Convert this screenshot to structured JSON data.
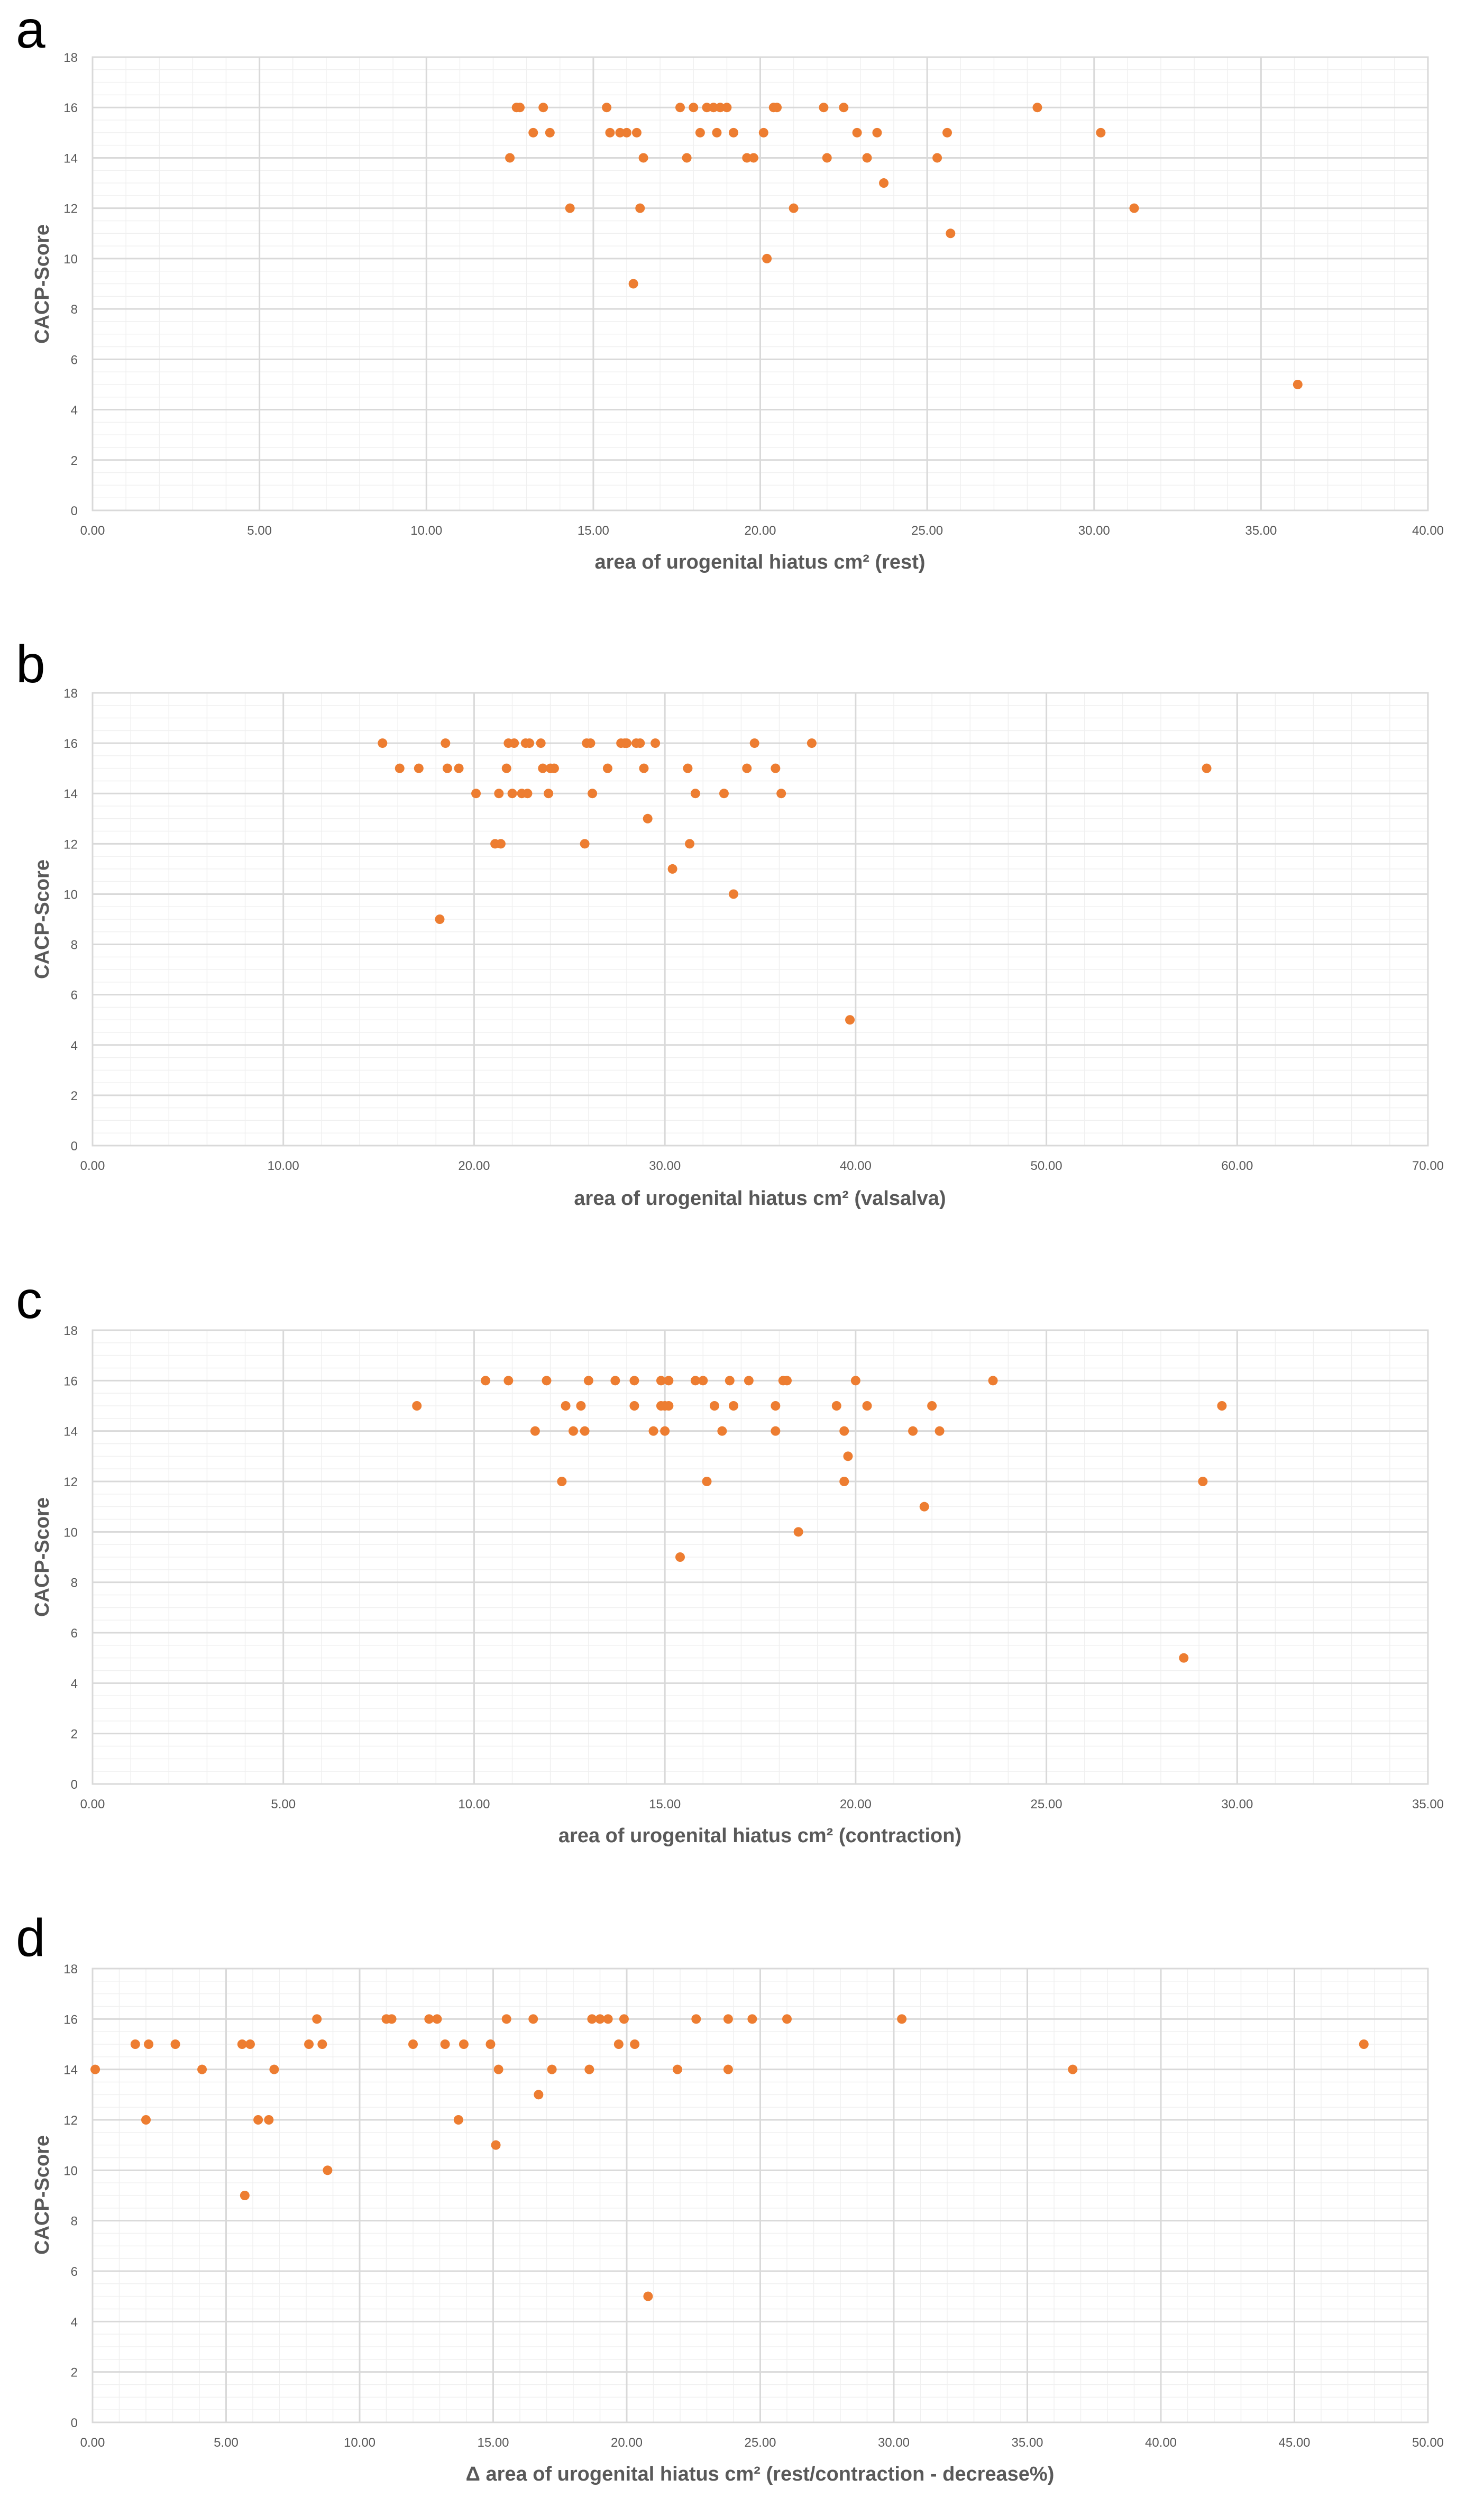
{
  "colors": {
    "marker": "#ED7D31",
    "major_grid": "#d9d9d9",
    "minor_grid": "#f0f0f0",
    "tick_text": "#595959",
    "frame": "#d9d9d9"
  },
  "chart_data": [
    {
      "panel": "a",
      "type": "scatter",
      "xlabel": "area of urogenital hiatus cm² (rest)",
      "ylabel": "CACP-Score",
      "xlim": [
        0,
        40
      ],
      "ylim": [
        0,
        18
      ],
      "x_ticks": [
        "0.00",
        "5.00",
        "10.00",
        "15.00",
        "20.00",
        "25.00",
        "30.00",
        "35.00",
        "40.00"
      ],
      "y_ticks": [
        "0",
        "2",
        "4",
        "6",
        "8",
        "10",
        "12",
        "14",
        "16",
        "18"
      ],
      "x_tick_step": 5,
      "y_tick_step": 2,
      "x_minor_step": 1,
      "y_minor_step": 0.5,
      "points": [
        [
          12.5,
          14
        ],
        [
          12.7,
          16
        ],
        [
          12.8,
          16
        ],
        [
          13.2,
          15
        ],
        [
          13.5,
          16
        ],
        [
          13.7,
          15
        ],
        [
          14.3,
          12
        ],
        [
          15.4,
          16
        ],
        [
          15.5,
          15
        ],
        [
          15.8,
          15
        ],
        [
          16.0,
          15
        ],
        [
          16.3,
          15
        ],
        [
          16.2,
          9
        ],
        [
          16.4,
          12
        ],
        [
          16.5,
          14
        ],
        [
          17.6,
          16
        ],
        [
          17.8,
          14
        ],
        [
          18.0,
          16
        ],
        [
          18.2,
          15
        ],
        [
          18.4,
          16
        ],
        [
          18.6,
          16
        ],
        [
          18.7,
          15
        ],
        [
          18.8,
          16
        ],
        [
          19.0,
          16
        ],
        [
          19.2,
          15
        ],
        [
          19.6,
          14
        ],
        [
          19.8,
          14
        ],
        [
          20.1,
          15
        ],
        [
          20.2,
          10
        ],
        [
          20.4,
          16
        ],
        [
          20.5,
          16
        ],
        [
          21.0,
          12
        ],
        [
          21.9,
          16
        ],
        [
          22.0,
          14
        ],
        [
          22.5,
          16
        ],
        [
          22.9,
          15
        ],
        [
          23.2,
          14
        ],
        [
          23.5,
          15
        ],
        [
          23.7,
          13
        ],
        [
          25.3,
          14
        ],
        [
          25.6,
          15
        ],
        [
          25.7,
          11
        ],
        [
          28.3,
          16
        ],
        [
          30.2,
          15
        ],
        [
          31.2,
          12
        ],
        [
          36.1,
          5
        ]
      ]
    },
    {
      "panel": "b",
      "type": "scatter",
      "xlabel": "area of urogenital hiatus cm² (valsalva)",
      "ylabel": "CACP-Score",
      "xlim": [
        0,
        70
      ],
      "ylim": [
        0,
        18
      ],
      "x_ticks": [
        "0.00",
        "10.00",
        "20.00",
        "30.00",
        "40.00",
        "50.00",
        "60.00",
        "70.00"
      ],
      "y_ticks": [
        "0",
        "2",
        "4",
        "6",
        "8",
        "10",
        "12",
        "14",
        "16",
        "18"
      ],
      "x_tick_step": 10,
      "y_tick_step": 2,
      "x_minor_step": 2,
      "y_minor_step": 0.5,
      "points": [
        [
          15.2,
          16
        ],
        [
          16.1,
          15
        ],
        [
          17.1,
          15
        ],
        [
          18.2,
          9
        ],
        [
          18.5,
          16
        ],
        [
          18.6,
          15
        ],
        [
          19.2,
          15
        ],
        [
          20.1,
          14
        ],
        [
          21.1,
          12
        ],
        [
          21.4,
          12
        ],
        [
          21.3,
          14
        ],
        [
          21.7,
          15
        ],
        [
          21.8,
          16
        ],
        [
          22.1,
          16
        ],
        [
          22.0,
          14
        ],
        [
          22.5,
          14
        ],
        [
          22.8,
          14
        ],
        [
          22.7,
          16
        ],
        [
          22.9,
          16
        ],
        [
          23.5,
          16
        ],
        [
          23.6,
          15
        ],
        [
          23.9,
          14
        ],
        [
          24.0,
          15
        ],
        [
          24.2,
          15
        ],
        [
          25.8,
          12
        ],
        [
          25.9,
          16
        ],
        [
          26.1,
          16
        ],
        [
          26.2,
          14
        ],
        [
          27.0,
          15
        ],
        [
          27.7,
          16
        ],
        [
          27.9,
          16
        ],
        [
          28.0,
          16
        ],
        [
          28.5,
          16
        ],
        [
          28.7,
          16
        ],
        [
          28.9,
          15
        ],
        [
          29.1,
          13
        ],
        [
          29.5,
          16
        ],
        [
          30.4,
          11
        ],
        [
          31.2,
          15
        ],
        [
          31.3,
          12
        ],
        [
          31.6,
          14
        ],
        [
          33.1,
          14
        ],
        [
          33.6,
          10
        ],
        [
          34.3,
          15
        ],
        [
          34.7,
          16
        ],
        [
          35.8,
          15
        ],
        [
          36.1,
          14
        ],
        [
          37.7,
          16
        ],
        [
          39.7,
          5
        ],
        [
          58.4,
          15
        ]
      ]
    },
    {
      "panel": "c",
      "type": "scatter",
      "xlabel": "area of urogenital hiatus cm² (contraction)",
      "ylabel": "CACP-Score",
      "xlim": [
        0,
        35
      ],
      "ylim": [
        0,
        18
      ],
      "x_ticks": [
        "0.00",
        "5.00",
        "10.00",
        "15.00",
        "20.00",
        "25.00",
        "30.00",
        "35.00"
      ],
      "y_ticks": [
        "0",
        "2",
        "4",
        "6",
        "8",
        "10",
        "12",
        "14",
        "16",
        "18"
      ],
      "x_tick_step": 5,
      "y_tick_step": 2,
      "x_minor_step": 1,
      "y_minor_step": 0.5,
      "points": [
        [
          8.5,
          15
        ],
        [
          10.3,
          16
        ],
        [
          10.9,
          16
        ],
        [
          11.6,
          14
        ],
        [
          11.9,
          16
        ],
        [
          12.3,
          12
        ],
        [
          12.4,
          15
        ],
        [
          12.6,
          14
        ],
        [
          12.8,
          15
        ],
        [
          12.9,
          14
        ],
        [
          13.0,
          16
        ],
        [
          13.7,
          16
        ],
        [
          14.2,
          16
        ],
        [
          14.2,
          15
        ],
        [
          14.7,
          14
        ],
        [
          14.9,
          16
        ],
        [
          14.9,
          15
        ],
        [
          15.0,
          15
        ],
        [
          15.0,
          14
        ],
        [
          15.1,
          16
        ],
        [
          15.1,
          15
        ],
        [
          15.4,
          9
        ],
        [
          15.8,
          16
        ],
        [
          16.0,
          16
        ],
        [
          16.1,
          12
        ],
        [
          16.3,
          15
        ],
        [
          16.5,
          14
        ],
        [
          16.7,
          16
        ],
        [
          16.8,
          15
        ],
        [
          17.2,
          16
        ],
        [
          17.9,
          15
        ],
        [
          17.9,
          14
        ],
        [
          18.1,
          16
        ],
        [
          18.2,
          16
        ],
        [
          18.5,
          10
        ],
        [
          19.5,
          15
        ],
        [
          19.7,
          12
        ],
        [
          19.7,
          14
        ],
        [
          19.8,
          13
        ],
        [
          20.0,
          16
        ],
        [
          20.3,
          15
        ],
        [
          21.5,
          14
        ],
        [
          21.8,
          11
        ],
        [
          22.0,
          15
        ],
        [
          22.2,
          14
        ],
        [
          23.6,
          16
        ],
        [
          28.6,
          5
        ],
        [
          29.1,
          12
        ],
        [
          29.6,
          15
        ]
      ]
    },
    {
      "panel": "d",
      "type": "scatter",
      "xlabel": "Δ area of urogenital hiatus cm² (rest/contraction - decrease%)",
      "ylabel": "CACP-Score",
      "xlim": [
        0,
        50
      ],
      "ylim": [
        0,
        18
      ],
      "x_ticks": [
        "0.00",
        "5.00",
        "10.00",
        "15.00",
        "20.00",
        "25.00",
        "30.00",
        "35.00",
        "40.00",
        "45.00",
        "50.00"
      ],
      "y_ticks": [
        "0",
        "2",
        "4",
        "6",
        "8",
        "10",
        "12",
        "14",
        "16",
        "18"
      ],
      "x_tick_step": 5,
      "y_tick_step": 2,
      "x_minor_step": 1,
      "y_minor_step": 0.5,
      "points": [
        [
          0.1,
          14
        ],
        [
          1.6,
          15
        ],
        [
          2.0,
          12
        ],
        [
          2.1,
          15
        ],
        [
          3.1,
          15
        ],
        [
          4.1,
          14
        ],
        [
          5.6,
          15
        ],
        [
          5.7,
          9
        ],
        [
          5.9,
          15
        ],
        [
          6.2,
          12
        ],
        [
          6.6,
          12
        ],
        [
          6.8,
          14
        ],
        [
          8.1,
          15
        ],
        [
          8.4,
          16
        ],
        [
          8.6,
          15
        ],
        [
          8.8,
          10
        ],
        [
          11.0,
          16
        ],
        [
          11.2,
          16
        ],
        [
          12.0,
          15
        ],
        [
          12.6,
          16
        ],
        [
          12.9,
          16
        ],
        [
          13.2,
          15
        ],
        [
          13.7,
          12
        ],
        [
          13.9,
          15
        ],
        [
          14.9,
          15
        ],
        [
          15.1,
          11
        ],
        [
          15.2,
          14
        ],
        [
          15.5,
          16
        ],
        [
          16.5,
          16
        ],
        [
          16.7,
          13
        ],
        [
          17.2,
          14
        ],
        [
          18.6,
          14
        ],
        [
          18.7,
          16
        ],
        [
          19.0,
          16
        ],
        [
          19.3,
          16
        ],
        [
          19.7,
          15
        ],
        [
          19.9,
          16
        ],
        [
          20.3,
          15
        ],
        [
          20.8,
          5
        ],
        [
          21.9,
          14
        ],
        [
          22.6,
          16
        ],
        [
          23.8,
          16
        ],
        [
          23.8,
          14
        ],
        [
          24.7,
          16
        ],
        [
          26.0,
          16
        ],
        [
          30.3,
          16
        ],
        [
          36.7,
          14
        ],
        [
          47.6,
          15
        ]
      ]
    }
  ]
}
